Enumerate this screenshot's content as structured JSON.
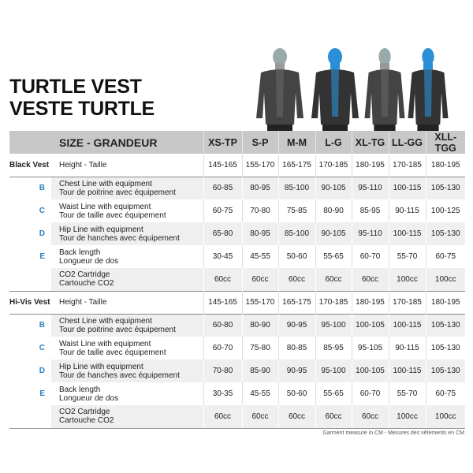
{
  "title": {
    "line1": "TURTLE VEST",
    "line2": "VESTE TURTLE"
  },
  "colors": {
    "accent": "#2a7fc0",
    "header_bg": "#c8c8c8",
    "row_shade": "#efefef"
  },
  "table": {
    "header_label": "SIZE - GRANDEUR",
    "sizes": [
      "XS-TP",
      "S-P",
      "M-M",
      "L-G",
      "XL-TG",
      "LL-GG",
      "XLL-TGG"
    ],
    "sections": [
      {
        "name": "Black Vest",
        "rows": [
          {
            "letter": "",
            "en": "Height - Taille",
            "fr": "",
            "values": [
              "145-165",
              "155-170",
              "165-175",
              "170-185",
              "180-195",
              "170-185",
              "180-195"
            ]
          },
          {
            "letter": "B",
            "en": "Chest Line with equipment",
            "fr": "Tour de poitrine avec équipement",
            "values": [
              "60-85",
              "80-95",
              "85-100",
              "90-105",
              "95-110",
              "100-115",
              "105-130"
            ]
          },
          {
            "letter": "C",
            "en": "Waist Line with equipment",
            "fr": "Tour de taille avec équipement",
            "values": [
              "60-75",
              "70-80",
              "75-85",
              "80-90",
              "85-95",
              "90-115",
              "100-125"
            ]
          },
          {
            "letter": "D",
            "en": "Hip Line with equipment",
            "fr": "Tour de hanches avec équipement",
            "values": [
              "65-80",
              "80-95",
              "85-100",
              "90-105",
              "95-110",
              "100-115",
              "105-130"
            ]
          },
          {
            "letter": "E",
            "en": "Back length",
            "fr": "Longueur de dos",
            "values": [
              "30-45",
              "45-55",
              "50-60",
              "55-65",
              "60-70",
              "55-70",
              "60-75"
            ]
          },
          {
            "letter": "",
            "en": "CO2 Cartridge",
            "fr": "Cartouche CO2",
            "values": [
              "60cc",
              "60cc",
              "60cc",
              "60cc",
              "60cc",
              "100cc",
              "100cc"
            ]
          }
        ]
      },
      {
        "name": "Hi-Vis Vest",
        "rows": [
          {
            "letter": "",
            "en": "Height - Taille",
            "fr": "",
            "values": [
              "145-165",
              "155-170",
              "165-175",
              "170-185",
              "180-195",
              "170-185",
              "180-195"
            ]
          },
          {
            "letter": "B",
            "en": "Chest Line with equipment",
            "fr": "Tour de poitrine avec équipement",
            "values": [
              "60-80",
              "80-90",
              "90-95",
              "95-100",
              "100-105",
              "100-115",
              "105-130"
            ]
          },
          {
            "letter": "C",
            "en": "Waist Line with equipment",
            "fr": "Tour de taille avec équipement",
            "values": [
              "60-70",
              "75-80",
              "80-85",
              "85-95",
              "95-105",
              "90-115",
              "105-130"
            ]
          },
          {
            "letter": "D",
            "en": "Hip Line with equipment",
            "fr": "Tour de hanches avec équipement",
            "values": [
              "70-80",
              "85-90",
              "90-95",
              "95-100",
              "100-105",
              "100-115",
              "105-130"
            ]
          },
          {
            "letter": "E",
            "en": "Back length",
            "fr": "Longueur de dos",
            "values": [
              "30-35",
              "45-55",
              "50-60",
              "55-65",
              "60-70",
              "55-70",
              "60-75"
            ]
          },
          {
            "letter": "",
            "en": "CO2 Cartridge",
            "fr": "Cartouche CO2",
            "values": [
              "60cc",
              "60cc",
              "60cc",
              "60cc",
              "60cc",
              "100cc",
              "100cc"
            ]
          }
        ]
      }
    ]
  },
  "footer": "Garment measure in CM -  Mesures des vêtements en CM"
}
